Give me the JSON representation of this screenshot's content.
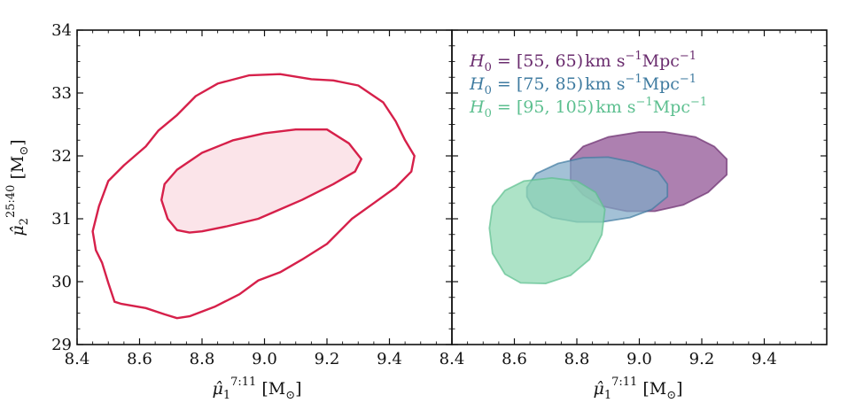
{
  "chart_data": [
    {
      "type": "contour",
      "panel": "left",
      "xlim": [
        8.4,
        9.6
      ],
      "ylim": [
        29,
        34
      ],
      "xticks": [
        "8.4",
        "8.6",
        "8.8",
        "9.0",
        "9.2",
        "9.4"
      ],
      "yticks": [
        "29",
        "30",
        "31",
        "32",
        "33",
        "34"
      ],
      "xlabel": {
        "main": "μ̂",
        "sub": "1",
        "sup": "7:11",
        "unit": " [M",
        "unit_sub": "⊙",
        "unit_close": "]"
      },
      "ylabel": {
        "main": "μ̂",
        "sub": "2",
        "sup": "25:40",
        "unit": " [M",
        "unit_sub": "⊙",
        "unit_close": "]"
      },
      "color": "#d6204a",
      "contours": [
        {
          "level": "outer",
          "filled": false,
          "points": [
            [
              8.45,
              30.8
            ],
            [
              8.47,
              31.2
            ],
            [
              8.5,
              31.6
            ],
            [
              8.55,
              31.85
            ],
            [
              8.62,
              32.15
            ],
            [
              8.66,
              32.4
            ],
            [
              8.72,
              32.65
            ],
            [
              8.78,
              32.95
            ],
            [
              8.85,
              33.15
            ],
            [
              8.95,
              33.28
            ],
            [
              9.05,
              33.3
            ],
            [
              9.15,
              33.22
            ],
            [
              9.22,
              33.2
            ],
            [
              9.3,
              33.12
            ],
            [
              9.38,
              32.85
            ],
            [
              9.42,
              32.55
            ],
            [
              9.45,
              32.25
            ],
            [
              9.48,
              32.0
            ],
            [
              9.47,
              31.75
            ],
            [
              9.42,
              31.5
            ],
            [
              9.35,
              31.25
            ],
            [
              9.28,
              31.0
            ],
            [
              9.2,
              30.6
            ],
            [
              9.12,
              30.35
            ],
            [
              9.05,
              30.15
            ],
            [
              8.98,
              30.02
            ],
            [
              8.92,
              29.8
            ],
            [
              8.84,
              29.6
            ],
            [
              8.76,
              29.45
            ],
            [
              8.72,
              29.42
            ],
            [
              8.68,
              29.48
            ],
            [
              8.62,
              29.58
            ],
            [
              8.54,
              29.65
            ],
            [
              8.52,
              29.68
            ],
            [
              8.5,
              29.98
            ],
            [
              8.48,
              30.3
            ],
            [
              8.46,
              30.5
            ]
          ]
        },
        {
          "level": "inner",
          "filled": true,
          "fill": "#fbe4e9",
          "points": [
            [
              8.67,
              31.3
            ],
            [
              8.68,
              31.55
            ],
            [
              8.72,
              31.78
            ],
            [
              8.8,
              32.05
            ],
            [
              8.9,
              32.25
            ],
            [
              9.0,
              32.36
            ],
            [
              9.1,
              32.42
            ],
            [
              9.2,
              32.42
            ],
            [
              9.27,
              32.2
            ],
            [
              9.31,
              31.95
            ],
            [
              9.29,
              31.75
            ],
            [
              9.22,
              31.55
            ],
            [
              9.12,
              31.3
            ],
            [
              9.05,
              31.15
            ],
            [
              8.98,
              31.0
            ],
            [
              8.88,
              30.88
            ],
            [
              8.8,
              30.8
            ],
            [
              8.76,
              30.78
            ],
            [
              8.72,
              30.82
            ],
            [
              8.69,
              31.0
            ]
          ]
        }
      ]
    },
    {
      "type": "contour",
      "panel": "right",
      "xlim": [
        8.4,
        9.6
      ],
      "ylim": [
        29,
        34
      ],
      "xticks": [
        "8.4",
        "8.6",
        "8.8",
        "9.0",
        "9.2",
        "9.4"
      ],
      "xlabel": {
        "main": "μ̂",
        "sub": "1",
        "sup": "7:11",
        "unit": " [M",
        "unit_sub": "⊙",
        "unit_close": "]"
      },
      "series": [
        {
          "name": "H0 = [55,65) km s^-1 Mpc^-1",
          "legend": {
            "h": "H",
            "h_sub": "0",
            "eq": " = ",
            "range": "[55, 65)",
            "units": "km s",
            "units_sup": "−1",
            "mpc": "Mpc",
            "mpc_sup": "−1"
          },
          "color": "#6a2c6e",
          "fill": "#8e4f91",
          "points": [
            [
              8.78,
              31.95
            ],
            [
              8.82,
              32.15
            ],
            [
              8.9,
              32.3
            ],
            [
              9.0,
              32.38
            ],
            [
              9.08,
              32.38
            ],
            [
              9.18,
              32.3
            ],
            [
              9.24,
              32.15
            ],
            [
              9.28,
              31.95
            ],
            [
              9.28,
              31.7
            ],
            [
              9.22,
              31.42
            ],
            [
              9.14,
              31.22
            ],
            [
              9.05,
              31.12
            ],
            [
              8.96,
              31.12
            ],
            [
              8.88,
              31.2
            ],
            [
              8.82,
              31.38
            ],
            [
              8.78,
              31.6
            ]
          ]
        },
        {
          "name": "H0 = [75,85) km s^-1 Mpc^-1",
          "legend": {
            "h": "H",
            "h_sub": "0",
            "eq": " = ",
            "range": "[75, 85)",
            "units": "km s",
            "units_sup": "−1",
            "mpc": "Mpc",
            "mpc_sup": "−1"
          },
          "color": "#3f7ba0",
          "fill": "#7fa9c6",
          "points": [
            [
              8.64,
              31.5
            ],
            [
              8.67,
              31.72
            ],
            [
              8.74,
              31.88
            ],
            [
              8.82,
              31.97
            ],
            [
              8.9,
              31.98
            ],
            [
              8.98,
              31.9
            ],
            [
              9.06,
              31.75
            ],
            [
              9.09,
              31.55
            ],
            [
              9.09,
              31.35
            ],
            [
              9.04,
              31.15
            ],
            [
              8.97,
              31.02
            ],
            [
              8.88,
              30.95
            ],
            [
              8.8,
              30.95
            ],
            [
              8.72,
              31.02
            ],
            [
              8.66,
              31.18
            ],
            [
              8.64,
              31.35
            ]
          ]
        },
        {
          "name": "H0 = [95,105) km s^-1 Mpc^-1",
          "legend": {
            "h": "H",
            "h_sub": "0",
            "eq": " = ",
            "range": "[95, 105)",
            "units": "km s",
            "units_sup": "−1",
            "mpc": "Mpc",
            "mpc_sup": "−1"
          },
          "color": "#5cbf8f",
          "fill": "#8ed8b2",
          "points": [
            [
              8.52,
              30.85
            ],
            [
              8.53,
              31.2
            ],
            [
              8.57,
              31.45
            ],
            [
              8.63,
              31.6
            ],
            [
              8.72,
              31.65
            ],
            [
              8.8,
              31.6
            ],
            [
              8.86,
              31.42
            ],
            [
              8.89,
              31.15
            ],
            [
              8.88,
              30.75
            ],
            [
              8.84,
              30.35
            ],
            [
              8.78,
              30.1
            ],
            [
              8.7,
              29.97
            ],
            [
              8.62,
              29.98
            ],
            [
              8.57,
              30.12
            ],
            [
              8.53,
              30.45
            ]
          ]
        }
      ]
    }
  ]
}
